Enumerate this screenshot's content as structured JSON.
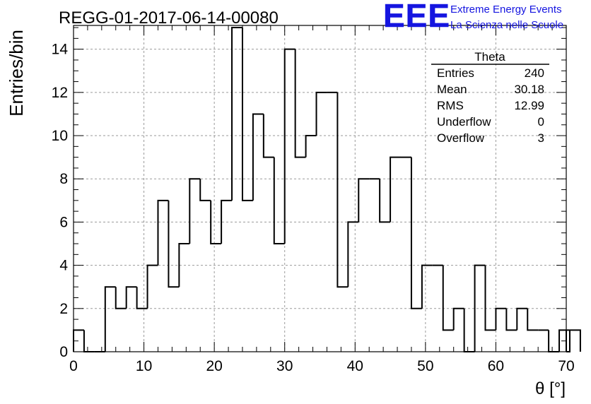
{
  "chart_data": {
    "type": "histogram",
    "title": "REGG-01-2017-06-14-00080",
    "xlabel": "θ [°]",
    "ylabel": "Entries/bin",
    "xlim": [
      0,
      70
    ],
    "ylim": [
      0,
      15.1
    ],
    "bin_width": 1.5,
    "bin_edges_start": 0,
    "values": [
      1,
      0,
      0,
      3,
      2,
      3,
      2,
      4,
      7,
      3,
      5,
      8,
      7,
      5,
      7,
      15,
      7,
      11,
      9,
      5,
      14,
      9,
      10,
      12,
      12,
      3,
      6,
      8,
      8,
      6,
      9,
      9,
      2,
      4,
      4,
      1,
      2,
      0,
      4,
      1,
      2,
      1,
      2,
      1,
      1,
      0,
      1,
      0,
      1
    ],
    "x_ticks": [
      "0",
      "10",
      "20",
      "30",
      "40",
      "50",
      "60",
      "70"
    ],
    "y_ticks": [
      "0",
      "2",
      "4",
      "6",
      "8",
      "10",
      "12",
      "14"
    ],
    "grid": true,
    "line_color": "#000000"
  },
  "stats_box": {
    "title": "Theta",
    "rows": [
      {
        "label": "Entries",
        "value": "240"
      },
      {
        "label": "Mean",
        "value": "30.18"
      },
      {
        "label": "RMS",
        "value": "12.99"
      },
      {
        "label": "Underflow",
        "value": "0"
      },
      {
        "label": "Overflow",
        "value": "3"
      }
    ]
  },
  "logo": {
    "mark": "EEE",
    "line1": "Extreme Energy Events",
    "line2": "La Scienza nelle Scuole",
    "color": "#1515e0"
  }
}
